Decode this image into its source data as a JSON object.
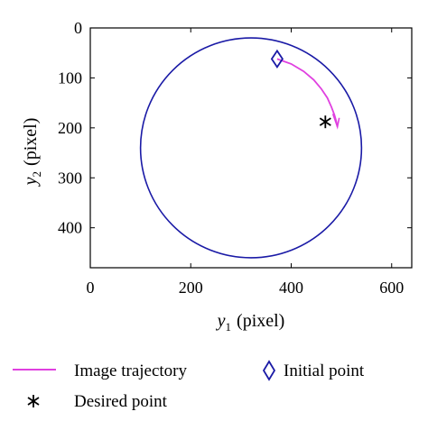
{
  "chart_data": {
    "type": "line",
    "xlabel_symbol": "y",
    "xlabel_sub": "1",
    "xlabel_unit": "(pixel)",
    "ylabel_symbol": "y",
    "ylabel_sub": "2",
    "ylabel_unit": "(pixel)",
    "xlim": [
      0,
      640
    ],
    "ylim": [
      0,
      480
    ],
    "y_inverted": true,
    "xticks": [
      0,
      200,
      400,
      600
    ],
    "yticks": [
      0,
      100,
      200,
      300,
      400
    ],
    "grid": false,
    "legend_position": "below",
    "series": [
      {
        "name": "",
        "kind": "circle",
        "center": [
          320,
          240
        ],
        "radius": 220,
        "color": "#1a1aa6"
      },
      {
        "name": "Image trajectory",
        "kind": "line",
        "color": "#e040e0",
        "x": [
          372,
          400,
          425,
          445,
          460,
          472,
          480,
          486,
          490,
          492
        ],
        "y": [
          62,
          72,
          87,
          104,
          122,
          140,
          158,
          174,
          188,
          198
        ],
        "arrow_end": [
          483,
          172
        ]
      },
      {
        "name": "Initial point",
        "kind": "marker",
        "marker": "diamond",
        "color": "#1a1aa6",
        "x": [
          372
        ],
        "y": [
          62
        ]
      },
      {
        "name": "Desired point",
        "kind": "marker",
        "marker": "asterisk",
        "color": "#000000",
        "x": [
          468
        ],
        "y": [
          188
        ]
      }
    ]
  }
}
